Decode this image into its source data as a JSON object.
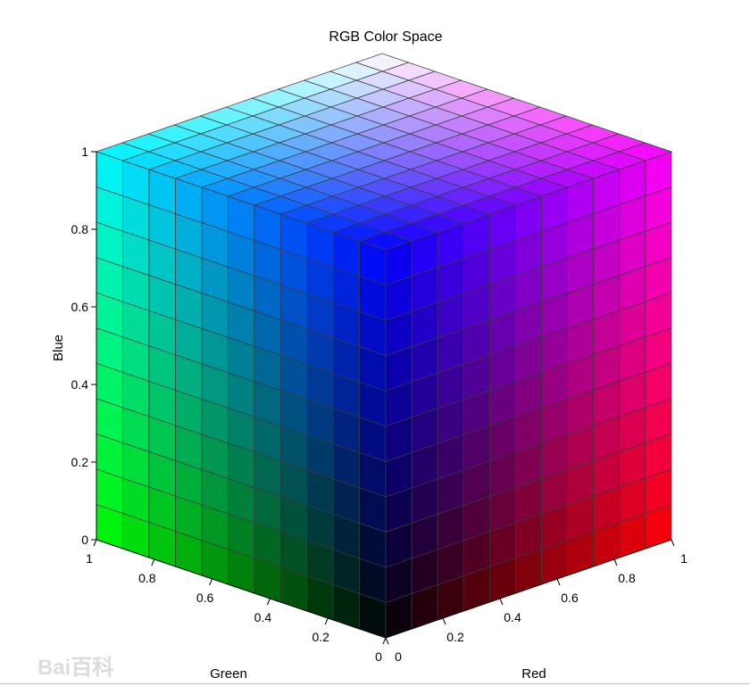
{
  "chart_data": {
    "type": "cube3d",
    "title": "RGB Color Space",
    "xlabel": "Red",
    "ylabel": "Green",
    "zlabel": "Blue",
    "xlim": [
      0,
      1
    ],
    "ylim": [
      0,
      1
    ],
    "zlim": [
      0,
      1
    ],
    "x_ticks": [
      "0",
      "0.2",
      "0.4",
      "0.6",
      "0.8",
      "1"
    ],
    "y_ticks": [
      "0",
      "0.2",
      "0.4",
      "0.6",
      "0.8",
      "1"
    ],
    "z_ticks": [
      "0",
      "0.2",
      "0.4",
      "0.6",
      "0.8",
      "1"
    ],
    "grid_divisions": 11,
    "corner_colors": {
      "black": "#000000",
      "red": "#ff0000",
      "green": "#00ff00",
      "blue": "#0000ff",
      "yellow": "#ffff00",
      "cyan": "#00ffff",
      "magenta": "#ff00ff",
      "white": "#ffffff"
    },
    "edge_color": "#3a3a3a"
  },
  "watermark": "Bai百科"
}
